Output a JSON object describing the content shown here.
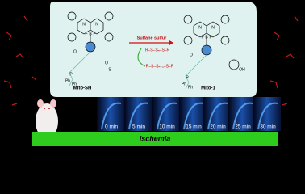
{
  "probe": {
    "name": "Mito-SH",
    "atoms": [
      "N",
      "N",
      "F",
      "B",
      "F",
      "O",
      "O",
      "S",
      "Ph",
      "Ph",
      "P"
    ]
  },
  "product": {
    "name": "Mito-1",
    "atoms": [
      "N",
      "N",
      "F",
      "B",
      "F",
      "O",
      "OH",
      "Ph",
      "Ph",
      "P"
    ]
  },
  "reaction": {
    "label": "Sulfane sulfur",
    "reactant": "R–S–Sₙ–S–R",
    "byproduct": "R–S–Sₙ₋₁–S–R"
  },
  "timepoints": [
    "0 min",
    "5 min",
    "10 min",
    "15 min",
    "20 min",
    "25 min",
    "30 min"
  ],
  "condition": "Ischemia"
}
